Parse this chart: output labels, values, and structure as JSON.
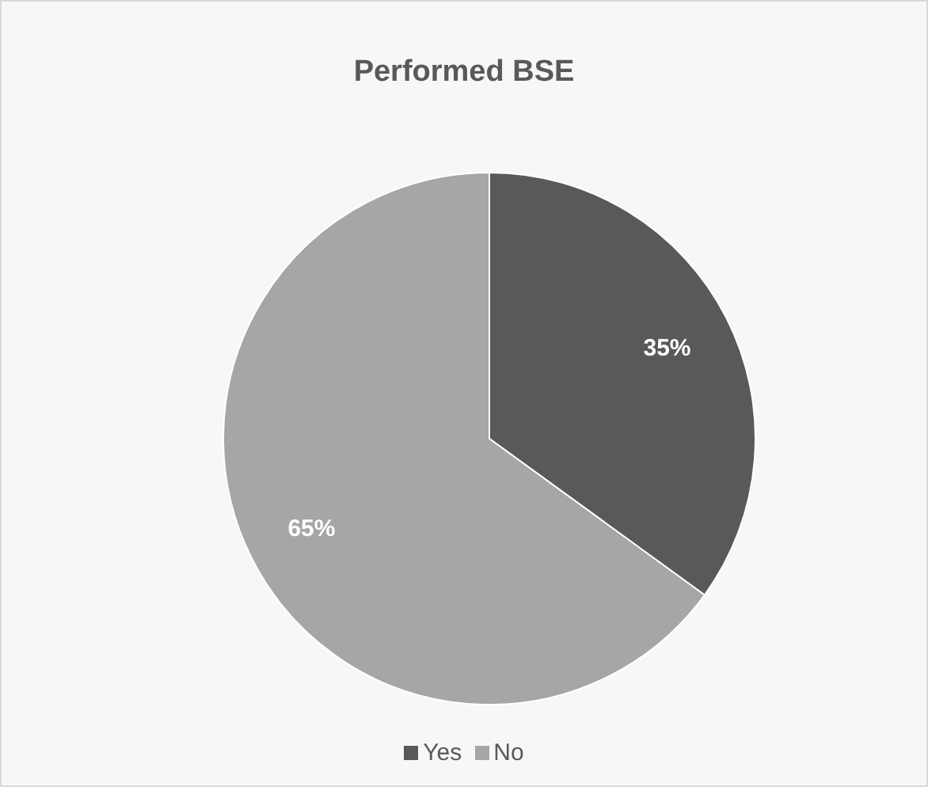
{
  "chart_data": {
    "type": "pie",
    "title": "Performed BSE",
    "categories": [
      "Yes",
      "No"
    ],
    "values": [
      35,
      65
    ],
    "colors": [
      "#595959",
      "#a6a6a6"
    ],
    "value_labels": [
      "35%",
      "65%"
    ],
    "legend": "bottom"
  }
}
